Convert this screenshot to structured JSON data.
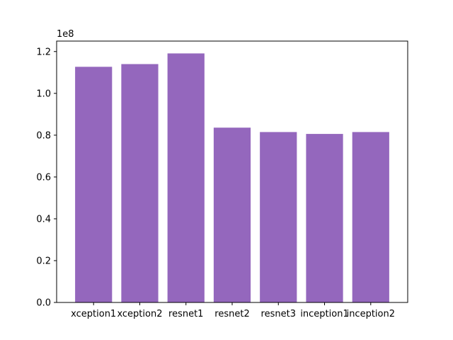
{
  "chart_data": {
    "type": "bar",
    "title": "",
    "xlabel": "",
    "ylabel": "",
    "y_offset_label": "1e8",
    "categories": [
      "xception1",
      "xception2",
      "resnet1",
      "resnet2",
      "resnet3",
      "inception1",
      "inception2"
    ],
    "values": [
      112700000,
      114000000,
      119100000,
      83600000,
      81500000,
      80600000,
      81500000
    ],
    "ylim": [
      0,
      125000000
    ],
    "yticks": [
      0,
      20000000,
      40000000,
      60000000,
      80000000,
      100000000,
      120000000
    ],
    "ytick_labels": [
      "0.0",
      "0.2",
      "0.4",
      "0.6",
      "0.8",
      "1.0",
      "1.2"
    ],
    "bar_color": "#9467bd",
    "grid": false,
    "legend": "none"
  }
}
